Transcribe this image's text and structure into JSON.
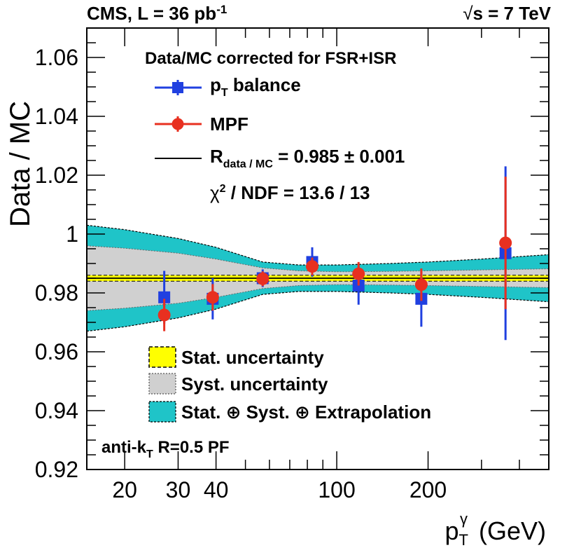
{
  "header": {
    "left_main": "CMS, L = 36 pb",
    "left_sup": "-1",
    "right_sqrt": "√",
    "right_rest": "s = 7 TeV"
  },
  "legend": {
    "title": "Data/MC corrected for FSR+ISR",
    "pt_main": "p",
    "pt_sub": "T",
    "pt_rest": " balance",
    "mpf": "MPF",
    "ratio_main": "R",
    "ratio_sub": "data / MC",
    "ratio_rest": " = 0.985 ± 0.001",
    "chi2_sym": "χ",
    "chi2_sup": "2",
    "chi2_rest": " / NDF = 13.6 / 13",
    "band_stat": "Stat. uncertainty",
    "band_syst": "Syst. uncertainty",
    "band_total": "Stat. ⊕ Syst. ⊕ Extrapolation",
    "algo_main": "anti-k",
    "algo_sub": "T",
    "algo_rest": " R=0.5 PF"
  },
  "colors": {
    "pt_balance": "#2040e0",
    "mpf": "#e83020",
    "stat_band": "#ffff00",
    "syst_band": "#d0d0d0",
    "total_band": "#1fc4c8",
    "fit_line": "#000000"
  },
  "chart_data": {
    "type": "scatter",
    "title": "",
    "xlabel": "p_T^γ (GeV)",
    "ylabel": "Data / MC",
    "xscale": "log",
    "xlim": [
      15,
      500
    ],
    "ylim": [
      0.92,
      1.07
    ],
    "xticks": [
      20,
      30,
      40,
      100,
      200
    ],
    "xtick_labels": [
      "20",
      "30",
      "40",
      "100",
      "200"
    ],
    "yticks": [
      0.92,
      0.94,
      0.96,
      0.98,
      1.0,
      1.02,
      1.04,
      1.06
    ],
    "ytick_labels": [
      "0.92",
      "0.94",
      "0.96",
      "0.98",
      "1",
      "1.02",
      "1.04",
      "1.06"
    ],
    "fit": {
      "value": 0.985,
      "stat": 0.001
    },
    "series": [
      {
        "name": "pT balance",
        "marker": "square",
        "x": [
          27,
          39,
          57,
          83,
          118,
          190,
          360
        ],
        "y": [
          0.9785,
          0.978,
          0.985,
          0.9905,
          0.9825,
          0.978,
          0.9935
        ],
        "err": [
          0.009,
          0.007,
          0.003,
          0.005,
          0.0065,
          0.0095,
          0.0295
        ]
      },
      {
        "name": "MPF",
        "marker": "circle",
        "x": [
          27,
          39,
          57,
          83,
          118,
          190,
          360
        ],
        "y": [
          0.9725,
          0.9785,
          0.9848,
          0.989,
          0.9865,
          0.9828,
          0.997
        ],
        "err": [
          0.0055,
          0.0045,
          0.0025,
          0.003,
          0.004,
          0.0055,
          0.0225
        ]
      }
    ],
    "bands": {
      "x": [
        15,
        20,
        30,
        40,
        57,
        75,
        100,
        150,
        200,
        300,
        500
      ],
      "total_half": [
        0.018,
        0.0165,
        0.0135,
        0.0105,
        0.0055,
        0.0045,
        0.0045,
        0.005,
        0.0055,
        0.0065,
        0.008
      ],
      "syst_half": [
        0.011,
        0.0102,
        0.0085,
        0.0065,
        0.0035,
        0.0025,
        0.0022,
        0.0023,
        0.0025,
        0.0028,
        0.0032
      ],
      "stat_half": 0.001
    }
  }
}
